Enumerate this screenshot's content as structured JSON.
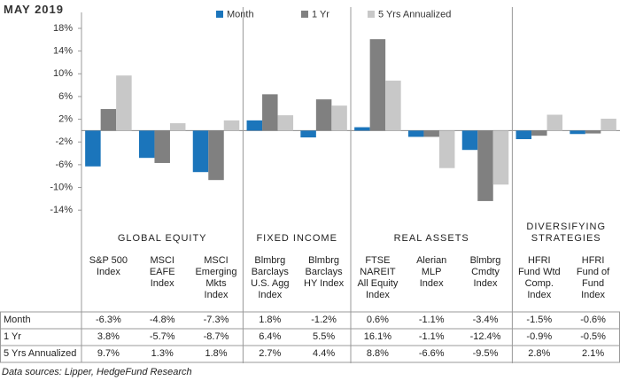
{
  "chart_data": {
    "type": "bar",
    "title": "MAY 2019",
    "source": "Data sources: Lipper, HedgeFund Research",
    "groups": [
      {
        "name": "GLOBAL EQUITY",
        "count": 3
      },
      {
        "name": "FIXED INCOME",
        "count": 2
      },
      {
        "name": "REAL ASSETS",
        "count": 3
      },
      {
        "name": "DIVERSIFYING\nSTRATEGIES",
        "count": 2
      }
    ],
    "categories": [
      "S&P 500\nIndex",
      "MSCI\nEAFE\nIndex",
      "MSCI\nEmerging\nMkts\nIndex",
      "Blmbrg\nBarclays\nU.S. Agg\nIndex",
      "Blmbrg\nBarclays\nHY Index",
      "FTSE\nNAREIT\nAll Equity\nIndex",
      "Alerian\nMLP\nIndex",
      "Blmbrg\nCmdty\nIndex",
      "HFRI\nFund Wtd\nComp.\nIndex",
      "HFRI\nFund of\nFund\nIndex"
    ],
    "series": [
      {
        "name": "Month",
        "color": "#1b75bb",
        "values": [
          -6.3,
          -4.8,
          -7.3,
          1.8,
          -1.2,
          0.6,
          -1.1,
          -3.4,
          -1.5,
          -0.6
        ],
        "value_labels": [
          "-6.3%",
          "-4.8%",
          "-7.3%",
          "1.8%",
          "-1.2%",
          "0.6%",
          "-1.1%",
          "-3.4%",
          "-1.5%",
          "-0.6%"
        ]
      },
      {
        "name": "1 Yr",
        "color": "#808080",
        "values": [
          3.8,
          -5.7,
          -8.7,
          6.4,
          5.5,
          16.1,
          -1.1,
          -12.4,
          -0.9,
          -0.5
        ],
        "value_labels": [
          "3.8%",
          "-5.7%",
          "-8.7%",
          "6.4%",
          "5.5%",
          "16.1%",
          "-1.1%",
          "-12.4%",
          "-0.9%",
          "-0.5%"
        ]
      },
      {
        "name": "5 Yrs Annualized",
        "color": "#c8c8c8",
        "values": [
          9.7,
          1.3,
          1.8,
          2.7,
          4.4,
          8.8,
          -6.6,
          -9.5,
          2.8,
          2.1
        ],
        "value_labels": [
          "9.7%",
          "1.3%",
          "1.8%",
          "2.7%",
          "4.4%",
          "8.8%",
          "-6.6%",
          "-9.5%",
          "2.8%",
          "2.1%"
        ]
      }
    ],
    "ylim": [
      -16,
      18
    ],
    "yticks": [
      {
        "value": 18,
        "label": "18%"
      },
      {
        "value": 14,
        "label": "14%"
      },
      {
        "value": 10,
        "label": "10%"
      },
      {
        "value": 6,
        "label": "6%"
      },
      {
        "value": 2,
        "label": "2%"
      },
      {
        "value": -2,
        "label": "-2%"
      },
      {
        "value": -6,
        "label": "-6%"
      },
      {
        "value": -10,
        "label": "-10%"
      },
      {
        "value": -14,
        "label": "-14%"
      }
    ],
    "legend": "top"
  }
}
